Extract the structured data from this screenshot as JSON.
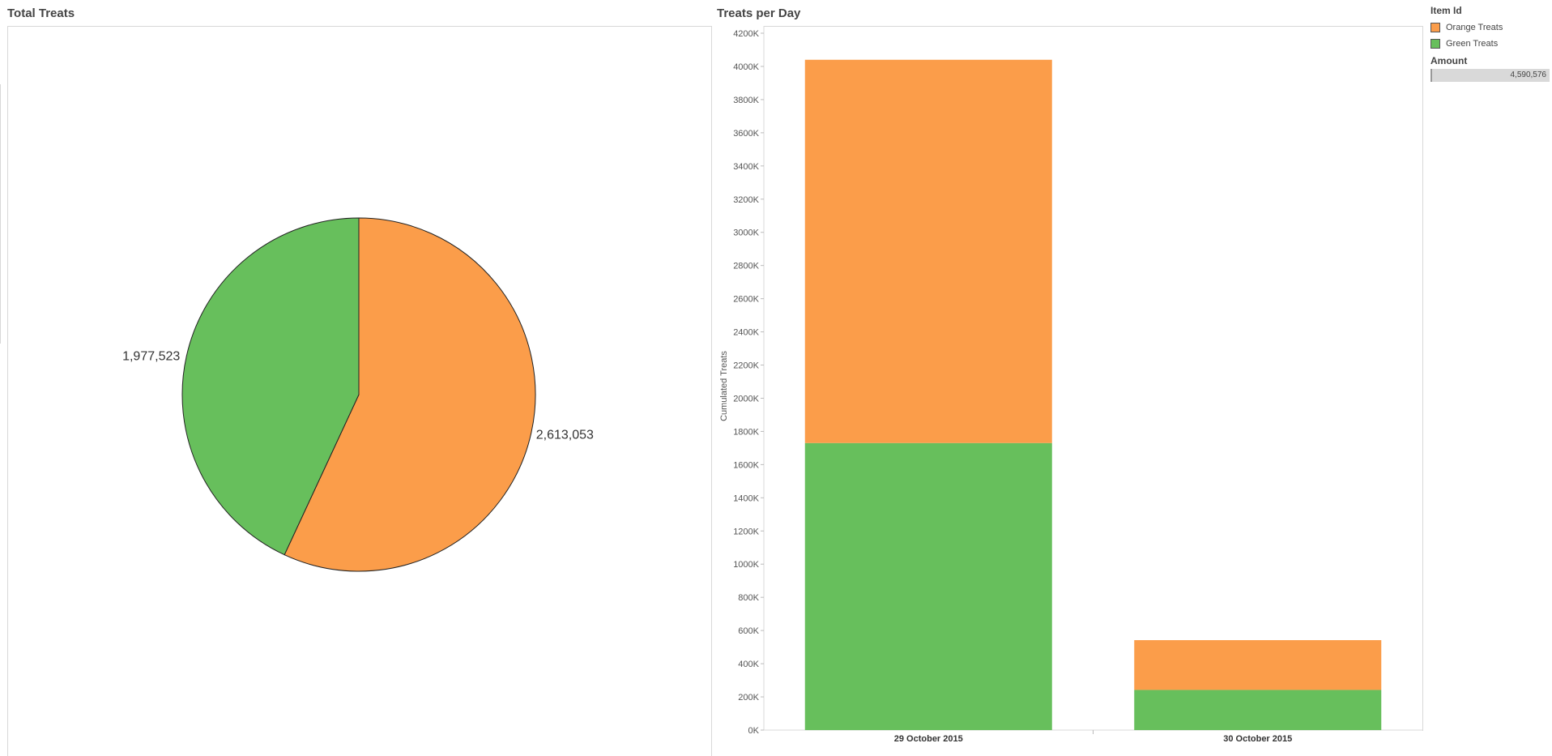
{
  "left_panel": {
    "title": "Total Treats"
  },
  "right_panel": {
    "title": "Treats per Day"
  },
  "legend": {
    "title": "Item Id",
    "items": [
      {
        "label": "Orange Treats",
        "color": "#fb9d4a"
      },
      {
        "label": "Green Treats",
        "color": "#67bf5c"
      }
    ],
    "amount_title": "Amount",
    "amount_value": "4,590,576"
  },
  "chart_data": [
    {
      "type": "pie",
      "title": "Total Treats",
      "slices": [
        {
          "name": "Orange Treats",
          "value": 2613053,
          "label": "2,613,053",
          "color": "#fb9d4a"
        },
        {
          "name": "Green Treats",
          "value": 1977523,
          "label": "1,977,523",
          "color": "#67bf5c"
        }
      ]
    },
    {
      "type": "bar",
      "stacked": true,
      "title": "Treats per Day",
      "ylabel": "Cumulated Treats",
      "xlabel": "",
      "categories": [
        "29 October 2015",
        "30 October 2015"
      ],
      "ylim": [
        0,
        4200000
      ],
      "yticks": [
        0,
        200000,
        400000,
        600000,
        800000,
        1000000,
        1200000,
        1400000,
        1600000,
        1800000,
        2000000,
        2200000,
        2400000,
        2600000,
        2800000,
        3000000,
        3200000,
        3400000,
        3600000,
        3800000,
        4000000,
        4200000
      ],
      "ytick_labels": [
        "0K",
        "200K",
        "400K",
        "600K",
        "800K",
        "1000K",
        "1200K",
        "1400K",
        "1600K",
        "1800K",
        "2000K",
        "2200K",
        "2400K",
        "2600K",
        "2800K",
        "3000K",
        "3200K",
        "3400K",
        "3600K",
        "3800K",
        "4000K",
        "4200K"
      ],
      "series": [
        {
          "name": "Green Treats",
          "color": "#67bf5c",
          "values": [
            1730000,
            242000
          ]
        },
        {
          "name": "Orange Treats",
          "color": "#fb9d4a",
          "values": [
            2310000,
            300000
          ]
        }
      ]
    }
  ]
}
